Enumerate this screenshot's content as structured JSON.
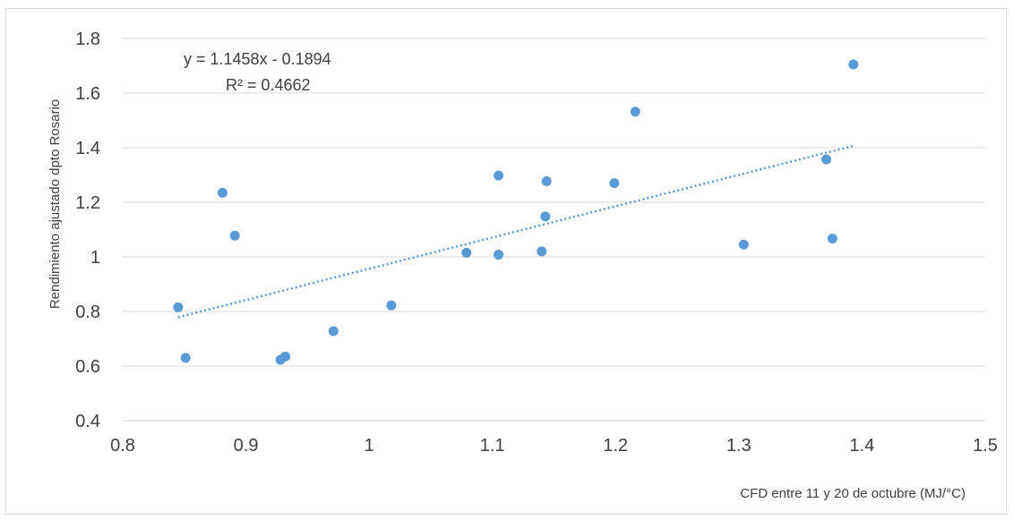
{
  "chart_data": {
    "type": "scatter",
    "title": "",
    "xlabel": "CFD entre 11 y 20 de octubre (MJ/°C)",
    "ylabel": "Rendimiento ajustado dpto Rosario",
    "xlim": [
      0.8,
      1.5
    ],
    "ylim": [
      0.4,
      1.8
    ],
    "x_ticks": [
      "0.8",
      "0.9",
      "1",
      "1.1",
      "1.2",
      "1.3",
      "1.4",
      "1.5"
    ],
    "y_ticks": [
      "0.4",
      "0.6",
      "0.8",
      "1",
      "1.2",
      "1.4",
      "1.6",
      "1.8"
    ],
    "grid": "horizontal",
    "series": [
      {
        "color": "#5b9bd5",
        "points": [
          {
            "x": 0.845,
            "y": 0.815
          },
          {
            "x": 0.851,
            "y": 0.63
          },
          {
            "x": 0.881,
            "y": 1.235
          },
          {
            "x": 0.891,
            "y": 1.078
          },
          {
            "x": 0.928,
            "y": 0.623
          },
          {
            "x": 0.932,
            "y": 0.635
          },
          {
            "x": 0.971,
            "y": 0.728
          },
          {
            "x": 1.018,
            "y": 0.822
          },
          {
            "x": 1.079,
            "y": 1.015
          },
          {
            "x": 1.105,
            "y": 1.298
          },
          {
            "x": 1.105,
            "y": 1.008
          },
          {
            "x": 1.14,
            "y": 1.02
          },
          {
            "x": 1.143,
            "y": 1.148
          },
          {
            "x": 1.144,
            "y": 1.277
          },
          {
            "x": 1.199,
            "y": 1.27
          },
          {
            "x": 1.216,
            "y": 1.532
          },
          {
            "x": 1.304,
            "y": 1.045
          },
          {
            "x": 1.371,
            "y": 1.357
          },
          {
            "x": 1.376,
            "y": 1.067
          },
          {
            "x": 1.393,
            "y": 1.705
          }
        ]
      }
    ],
    "trendline": {
      "type": "linear",
      "slope": 1.1458,
      "intercept": -0.1894,
      "x_range": [
        0.845,
        1.393
      ],
      "equation_label": "y = 1.1458x - 0.1894",
      "r2_label": "R² = 0.4662"
    }
  }
}
